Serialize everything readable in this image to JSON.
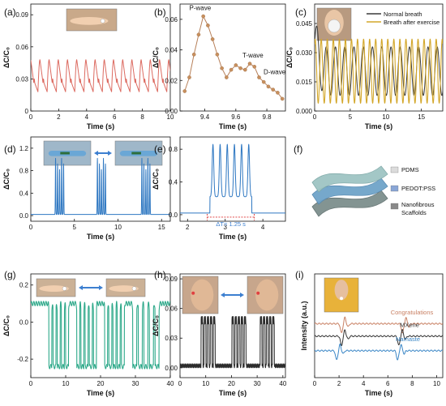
{
  "figure": {
    "panels": [
      {
        "id": "a",
        "label": "(a)",
        "xlabel": "Time (s)",
        "ylabel": "ΔC/C₀"
      },
      {
        "id": "b",
        "label": "(b)",
        "xlabel": "Time (s)",
        "ylabel": "ΔC/C₀"
      },
      {
        "id": "c",
        "label": "(c)",
        "xlabel": "Time (s)",
        "ylabel": "ΔC/C₀"
      },
      {
        "id": "d",
        "label": "(d)",
        "xlabel": "Time (s)",
        "ylabel": "ΔC/C₀"
      },
      {
        "id": "e",
        "label": "(e)",
        "xlabel": "Time (s)",
        "ylabel": "ΔC/C₀"
      },
      {
        "id": "f",
        "label": "(f)"
      },
      {
        "id": "g",
        "label": "(g)",
        "xlabel": "Time (s)",
        "ylabel": "ΔC/C₀"
      },
      {
        "id": "h",
        "label": "(h)",
        "xlabel": "Time (s)",
        "ylabel": "ΔC/C₀"
      },
      {
        "id": "i",
        "label": "(i)",
        "xlabel": "Time (s)",
        "ylabel": "Intensity (a.u.)"
      }
    ],
    "diagram_f": {
      "layers": [
        "PDMS",
        "PEDOT:PSS",
        "Nanofibrous Scaffolds"
      ]
    },
    "colors": {
      "a": "#dc6a60",
      "b": "#b7805a",
      "c_normal": "#3a3a3a",
      "c_exercise": "#d3a72a",
      "d": "#2f78c2",
      "e": "#2f78c2",
      "g": "#2ea98a",
      "h": "#2b2b2b",
      "i_top": "#c87f62",
      "i_mid": "#333333",
      "i_bot": "#3a86c6"
    }
  },
  "chart_data": [
    {
      "panel": "a",
      "type": "line",
      "xlim": [
        0,
        10
      ],
      "ylim": [
        0,
        0.1
      ],
      "xticks": [
        0,
        2,
        4,
        6,
        8,
        10
      ],
      "yticks": [
        0,
        0.03,
        0.06,
        0.09
      ],
      "series": [
        {
          "pattern": "pulse",
          "period_s": 0.66,
          "baseline": 0.018,
          "peak": 0.048,
          "start": 0,
          "end": 10
        }
      ]
    },
    {
      "panel": "b",
      "type": "line",
      "xlim": [
        9.24,
        9.92
      ],
      "ylim": [
        0,
        0.07
      ],
      "xticks": [
        9.4,
        9.6,
        9.8
      ],
      "yticks": [
        0,
        0.02,
        0.04,
        0.06
      ],
      "annotations": [
        "P-wave",
        "T-wave",
        "D-wave"
      ],
      "series": [
        {
          "x": [
            9.27,
            9.3,
            9.33,
            9.36,
            9.39,
            9.42,
            9.45,
            9.48,
            9.51,
            9.54,
            9.57,
            9.6,
            9.63,
            9.66,
            9.69,
            9.72,
            9.75,
            9.78,
            9.81,
            9.84,
            9.87,
            9.9
          ],
          "y": [
            0.013,
            0.022,
            0.037,
            0.05,
            0.062,
            0.056,
            0.047,
            0.037,
            0.028,
            0.022,
            0.027,
            0.03,
            0.028,
            0.027,
            0.031,
            0.029,
            0.022,
            0.019,
            0.016,
            0.014,
            0.012,
            0.008
          ]
        }
      ]
    },
    {
      "panel": "c",
      "type": "line",
      "xlim": [
        0,
        18
      ],
      "ylim": [
        0,
        0.055
      ],
      "xticks": [
        0,
        5,
        10,
        15
      ],
      "yticks": [
        0,
        0.015,
        0.03,
        0.045
      ],
      "legend": [
        "Normal breath",
        "Breath after exercise"
      ],
      "series": [
        {
          "name": "Normal breath",
          "pattern": "breath",
          "period_s": 1.3,
          "low": 0.008,
          "high": 0.033
        },
        {
          "name": "Breath after exercise",
          "pattern": "breath",
          "period_s": 0.85,
          "low": 0.004,
          "high": 0.037
        }
      ]
    },
    {
      "panel": "d",
      "type": "line",
      "xlim": [
        0,
        16
      ],
      "ylim": [
        -0.1,
        1.4
      ],
      "xticks": [
        0,
        5,
        10,
        15
      ],
      "yticks": [
        0,
        0.4,
        0.8,
        1.2
      ],
      "series": [
        {
          "pattern": "bursts",
          "burst_centers": [
            3.3,
            8.1,
            13.2
          ],
          "pulses_per_burst": 5,
          "pulse_spacing_s": 0.23,
          "peak": 1.0,
          "baseline": 0.02
        }
      ]
    },
    {
      "panel": "e",
      "type": "line",
      "xlim": [
        1.8,
        4.6
      ],
      "ylim": [
        -0.08,
        0.95
      ],
      "xticks": [
        2,
        3,
        4
      ],
      "yticks": [
        0,
        0.4,
        0.8
      ],
      "annotation": "ΔT= 1.25 s",
      "series": [
        {
          "pattern": "bursts",
          "burst_centers": [
            3.15
          ],
          "pulses_per_burst": 6,
          "pulse_spacing_s": 0.19,
          "peak": 0.86,
          "baseline": 0.02
        }
      ]
    },
    {
      "panel": "g",
      "type": "line",
      "xlim": [
        0,
        40
      ],
      "ylim": [
        -0.3,
        0.26
      ],
      "xticks": [
        0,
        10,
        20,
        30,
        40
      ],
      "yticks": [
        -0.2,
        0,
        0.2
      ],
      "series": [
        {
          "pattern": "square_bursts",
          "burst_centers": [
            8,
            16,
            24,
            33
          ],
          "pulses_per_burst": 5,
          "high": 0.1,
          "low": -0.24
        }
      ]
    },
    {
      "panel": "h",
      "type": "line",
      "xlim": [
        0,
        41
      ],
      "ylim": [
        -0.01,
        0.095
      ],
      "xticks": [
        0,
        10,
        20,
        30,
        40
      ],
      "yticks": [
        0,
        0.03,
        0.06,
        0.09
      ],
      "series": [
        {
          "pattern": "square_bursts",
          "burst_centers": [
            11,
            23,
            34
          ],
          "pulses_per_burst": 5,
          "high": 0.048,
          "low": 0.002
        }
      ]
    },
    {
      "panel": "i",
      "type": "line",
      "xlim": [
        0,
        10.5
      ],
      "xticks": [
        0,
        2,
        4,
        6,
        8,
        10
      ],
      "series": [
        {
          "name": "Congratulations",
          "features": [
            2.2,
            7.2
          ]
        },
        {
          "name": "MXene",
          "features": [
            2.2,
            6.9
          ]
        },
        {
          "name": "Namaste",
          "features": [
            1.8,
            6.8
          ]
        }
      ]
    }
  ]
}
